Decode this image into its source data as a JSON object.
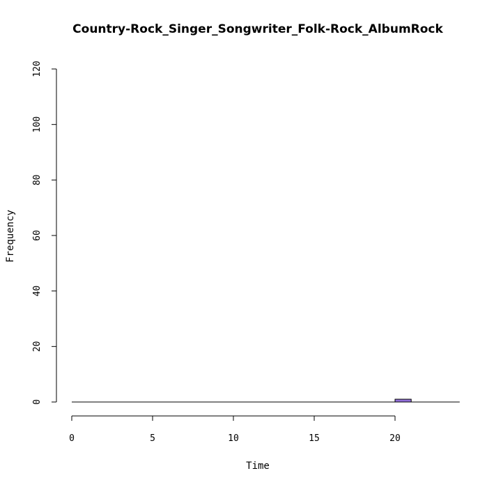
{
  "chart_data": {
    "type": "bar",
    "title": "Country-Rock_Singer_Songwriter_Folk-Rock_AlbumRock",
    "xlabel": "Time",
    "ylabel": "Frequency",
    "xlim": [
      0,
      24
    ],
    "ylim": [
      0,
      120
    ],
    "x_ticks": [
      0,
      5,
      10,
      15,
      20
    ],
    "y_ticks": [
      0,
      20,
      40,
      60,
      80,
      100,
      120
    ],
    "bin_width": 1,
    "bins": [
      {
        "x0": 20,
        "x1": 21,
        "count": 1
      }
    ],
    "bar_color": "#9370DB",
    "grid": false
  }
}
